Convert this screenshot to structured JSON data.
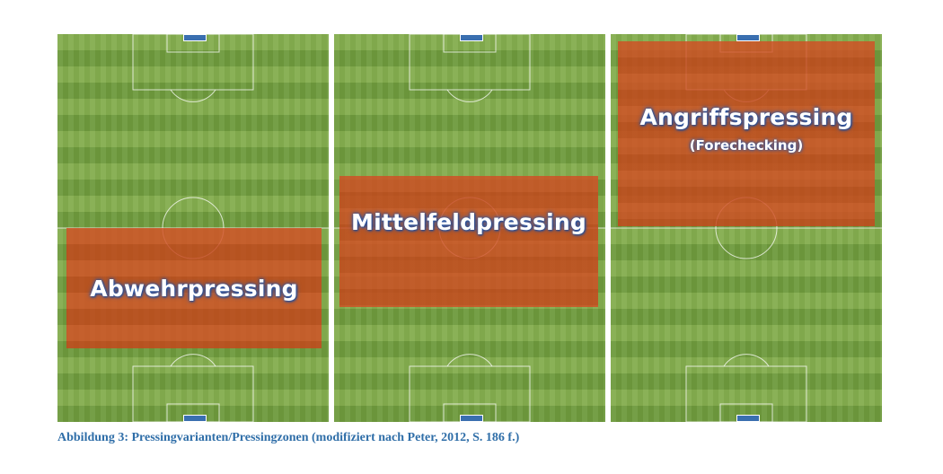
{
  "zones": [
    {
      "label": "Abwehrpressing",
      "sublabel": ""
    },
    {
      "label": "Mittelfeldpressing",
      "sublabel": ""
    },
    {
      "label": "Angriffspressing",
      "sublabel": "(Forechecking)"
    }
  ],
  "caption": "Abbildung 3: Pressingvarianten/Pressingzonen (modifiziert nach Peter, 2012, S. 186 f.)",
  "colors": {
    "pitch_green": "#7fa94a",
    "zone_orange": "#d0481c",
    "label_glow": "#2a58a8",
    "caption_blue": "#2f6ea8",
    "goal_blue": "#3a6fb0"
  }
}
